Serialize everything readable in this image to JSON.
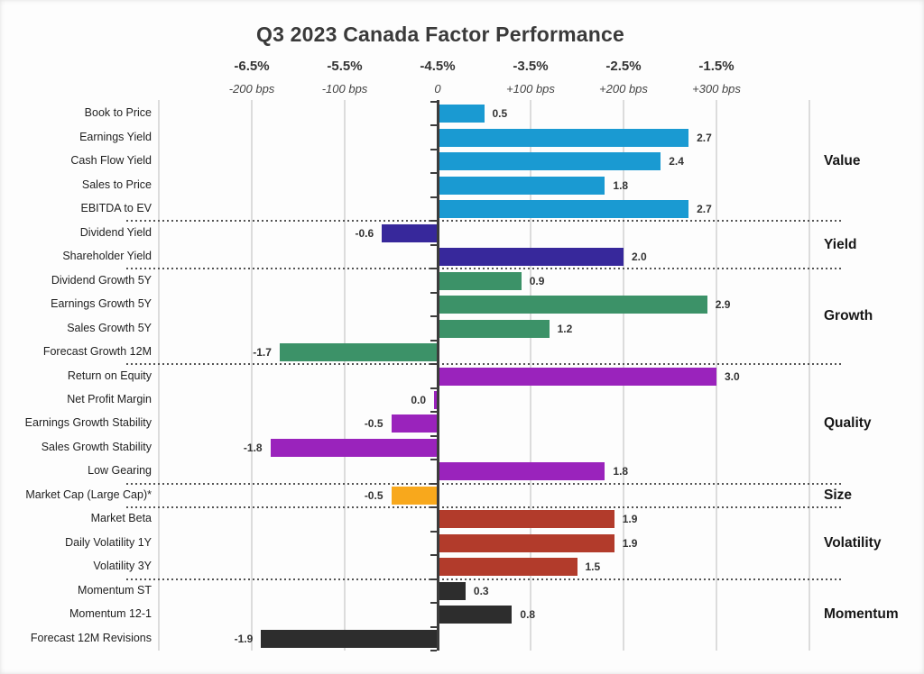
{
  "chart_data": {
    "type": "bar",
    "orientation": "horizontal",
    "title": "Q3 2023 Canada Factor Performance",
    "xlabel": "",
    "ylabel": "",
    "xlim": [
      -3,
      4
    ],
    "grid": true,
    "value_format": "one_decimal",
    "units": "percent (bps/100) relative return",
    "top_axis": {
      "percent_labels": [
        "-6.5%",
        "-5.5%",
        "-4.5%",
        "-3.5%",
        "-2.5%",
        "-1.5%"
      ],
      "bps_labels": [
        "-200 bps",
        "-100 bps",
        "0",
        "+100 bps",
        "+200 bps",
        "+300 bps"
      ],
      "tick_values": [
        -2,
        -1,
        0,
        1,
        2,
        3
      ]
    },
    "groups": [
      {
        "name": "Value",
        "color": "#1A9AD2",
        "items": [
          {
            "label": "Book to Price",
            "value": 0.5
          },
          {
            "label": "Earnings Yield",
            "value": 2.7
          },
          {
            "label": "Cash Flow Yield",
            "value": 2.4
          },
          {
            "label": "Sales to Price",
            "value": 1.8
          },
          {
            "label": "EBITDA to EV",
            "value": 2.7
          }
        ]
      },
      {
        "name": "Yield",
        "color": "#37289B",
        "items": [
          {
            "label": "Dividend Yield",
            "value": -0.6
          },
          {
            "label": "Shareholder Yield",
            "value": 2.0
          }
        ]
      },
      {
        "name": "Growth",
        "color": "#3C9268",
        "items": [
          {
            "label": "Dividend Growth 5Y",
            "value": 0.9
          },
          {
            "label": "Earnings Growth 5Y",
            "value": 2.9
          },
          {
            "label": "Sales Growth 5Y",
            "value": 1.2
          },
          {
            "label": "Forecast Growth 12M",
            "value": -1.7
          }
        ]
      },
      {
        "name": "Quality",
        "color": "#9A23BC",
        "items": [
          {
            "label": "Return on Equity",
            "value": 3.0
          },
          {
            "label": "Net Profit Margin",
            "value": 0.0
          },
          {
            "label": "Earnings Growth Stability",
            "value": -0.5
          },
          {
            "label": "Sales Growth Stability",
            "value": -1.8
          },
          {
            "label": "Low Gearing",
            "value": 1.8
          }
        ]
      },
      {
        "name": "Size",
        "color": "#F8A81C",
        "items": [
          {
            "label": "Market Cap (Large Cap)*",
            "value": -0.5
          }
        ]
      },
      {
        "name": "Volatility",
        "color": "#B23B2B",
        "items": [
          {
            "label": "Market Beta",
            "value": 1.9
          },
          {
            "label": "Daily Volatility 1Y",
            "value": 1.9
          },
          {
            "label": "Volatility 3Y",
            "value": 1.5
          }
        ]
      },
      {
        "name": "Momentum",
        "color": "#2D2D2D",
        "items": [
          {
            "label": "Momentum ST",
            "value": 0.3
          },
          {
            "label": "Momentum 12-1",
            "value": 0.8
          },
          {
            "label": "Forecast 12M Revisions",
            "value": -1.9
          }
        ]
      }
    ]
  }
}
